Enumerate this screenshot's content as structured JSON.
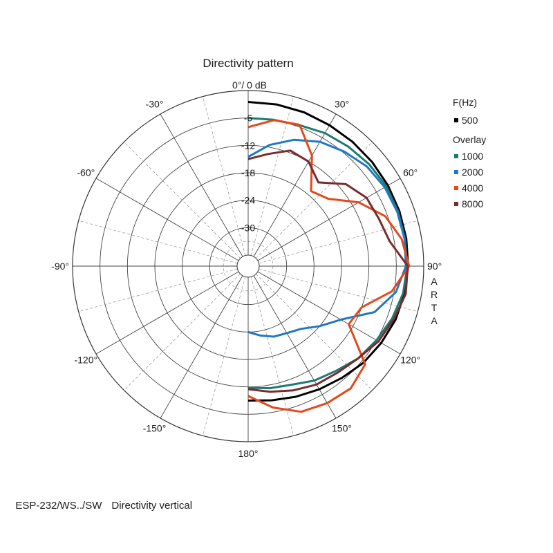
{
  "chart_data": {
    "type": "line",
    "subtype": "polar",
    "title": "Directivity pattern",
    "reference_label": "0°/ 0 dB",
    "radial_ticks": [
      "-6",
      "-12",
      "-18",
      "-24",
      "-30"
    ],
    "radial_range_db": [
      -36,
      0
    ],
    "angle_labels": [
      {
        "angle": -30,
        "text": "-30°"
      },
      {
        "angle": 30,
        "text": "30°"
      },
      {
        "angle": -60,
        "text": "-60°"
      },
      {
        "angle": 60,
        "text": "60°"
      },
      {
        "angle": -90,
        "text": "-90°"
      },
      {
        "angle": 90,
        "text": "90°"
      },
      {
        "angle": -120,
        "text": "-120°"
      },
      {
        "angle": 120,
        "text": "120°"
      },
      {
        "angle": -150,
        "text": "-150°"
      },
      {
        "angle": 150,
        "text": "150°"
      },
      {
        "angle": 180,
        "text": "180°"
      }
    ],
    "side_text": [
      "A",
      "R",
      "T",
      "A"
    ],
    "legend": {
      "header": "F(Hz)",
      "main": {
        "name": "500",
        "color": "#000000"
      },
      "overlay_header": "Overlay",
      "overlays": [
        {
          "name": "1000",
          "color": "#1d7a72"
        },
        {
          "name": "2000",
          "color": "#1f78c8"
        },
        {
          "name": "4000",
          "color": "#e4481b"
        },
        {
          "name": "8000",
          "color": "#7a2b2b"
        }
      ]
    },
    "series": [
      {
        "name": "500",
        "color": "#000000",
        "angles": [
          0,
          10,
          20,
          30,
          40,
          50,
          60,
          70,
          80,
          90,
          100,
          110,
          120,
          130,
          140,
          150,
          160,
          170,
          180
        ],
        "values": [
          -2.5,
          -2.5,
          -2.6,
          -2.8,
          -2.9,
          -3.0,
          -3.1,
          -3.2,
          -3.3,
          -3.4,
          -3.7,
          -4.1,
          -4.8,
          -5.5,
          -6.5,
          -7.3,
          -8.0,
          -8.6,
          -9.0
        ]
      },
      {
        "name": "1000",
        "color": "#1d7a72",
        "angles": [
          0,
          10,
          20,
          30,
          40,
          50,
          60,
          70,
          80,
          90,
          100,
          110,
          120,
          130,
          140,
          150,
          160,
          170,
          180
        ],
        "values": [
          -6.0,
          -5.9,
          -5.6,
          -4.8,
          -4.3,
          -3.8,
          -3.5,
          -3.5,
          -3.6,
          -3.6,
          -4.0,
          -4.9,
          -6.0,
          -7.0,
          -8.5,
          -9.5,
          -10.8,
          -11.3,
          -11.8
        ]
      },
      {
        "name": "2000",
        "color": "#1f78c8",
        "angles": [
          0,
          10,
          20,
          30,
          40,
          50,
          60,
          70,
          80,
          90,
          100,
          110,
          120,
          130,
          140,
          150,
          160,
          170,
          180
        ],
        "values": [
          -14.5,
          -11.5,
          -9.0,
          -7.0,
          -5.7,
          -4.5,
          -3.9,
          -3.7,
          -3.7,
          -3.9,
          -5.6,
          -9.0,
          -15.0,
          -18.0,
          -20.5,
          -21.5,
          -22.0,
          -23.0,
          -24.0
        ]
      },
      {
        "name": "4000",
        "color": "#e4481b",
        "angles": [
          0,
          10,
          20,
          30,
          40,
          50,
          60,
          70,
          80,
          90,
          100,
          110,
          120,
          130,
          140,
          150,
          160,
          170,
          180
        ],
        "values": [
          -8.0,
          -6.0,
          -5.5,
          -10.5,
          -17.0,
          -15.5,
          -10.5,
          -6.5,
          -4.3,
          -3.2,
          -6.5,
          -12.0,
          -13.0,
          -5.0,
          -3.5,
          -3.8,
          -4.5,
          -7.0,
          -10.0
        ]
      },
      {
        "name": "8000",
        "color": "#7a2b2b",
        "angles": [
          0,
          10,
          20,
          30,
          40,
          50,
          60,
          70,
          80,
          90,
          100,
          110,
          120,
          130,
          140,
          150,
          160,
          170,
          180
        ],
        "values": [
          -15.0,
          -13.5,
          -11.5,
          -12.0,
          -14.5,
          -10.5,
          -8.5,
          -8.0,
          -7.0,
          -3.5,
          -3.4,
          -4.5,
          -5.5,
          -7.0,
          -8.0,
          -8.5,
          -9.5,
          -10.5,
          -11.5
        ]
      }
    ]
  },
  "caption": {
    "model": "ESP-232/WS../SW",
    "description": "Directivity vertical"
  }
}
